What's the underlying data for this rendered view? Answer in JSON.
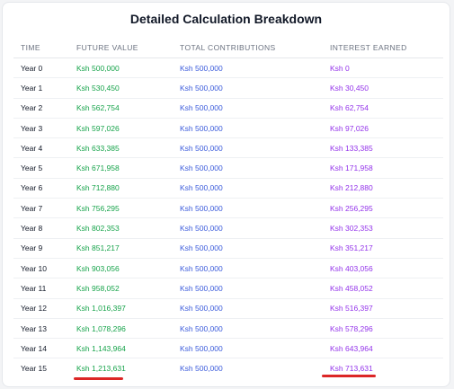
{
  "title": "Detailed Calculation Breakdown",
  "headers": {
    "time": "TIME",
    "future_value": "FUTURE VALUE",
    "total_contributions": "TOTAL CONTRIBUTIONS",
    "interest_earned": "INTEREST EARNED"
  },
  "colors": {
    "future_value": "#16a34a",
    "total_contributions": "#3b5bdb",
    "interest_earned": "#9333ea",
    "annotation": "#dc2626"
  },
  "rows": [
    {
      "time": "Year 0",
      "future_value": "Ksh 500,000",
      "total_contributions": "Ksh 500,000",
      "interest_earned": "Ksh 0"
    },
    {
      "time": "Year 1",
      "future_value": "Ksh 530,450",
      "total_contributions": "Ksh 500,000",
      "interest_earned": "Ksh 30,450"
    },
    {
      "time": "Year 2",
      "future_value": "Ksh 562,754",
      "total_contributions": "Ksh 500,000",
      "interest_earned": "Ksh 62,754"
    },
    {
      "time": "Year 3",
      "future_value": "Ksh 597,026",
      "total_contributions": "Ksh 500,000",
      "interest_earned": "Ksh 97,026"
    },
    {
      "time": "Year 4",
      "future_value": "Ksh 633,385",
      "total_contributions": "Ksh 500,000",
      "interest_earned": "Ksh 133,385"
    },
    {
      "time": "Year 5",
      "future_value": "Ksh 671,958",
      "total_contributions": "Ksh 500,000",
      "interest_earned": "Ksh 171,958"
    },
    {
      "time": "Year 6",
      "future_value": "Ksh 712,880",
      "total_contributions": "Ksh 500,000",
      "interest_earned": "Ksh 212,880"
    },
    {
      "time": "Year 7",
      "future_value": "Ksh 756,295",
      "total_contributions": "Ksh 500,000",
      "interest_earned": "Ksh 256,295"
    },
    {
      "time": "Year 8",
      "future_value": "Ksh 802,353",
      "total_contributions": "Ksh 500,000",
      "interest_earned": "Ksh 302,353"
    },
    {
      "time": "Year 9",
      "future_value": "Ksh 851,217",
      "total_contributions": "Ksh 500,000",
      "interest_earned": "Ksh 351,217"
    },
    {
      "time": "Year 10",
      "future_value": "Ksh 903,056",
      "total_contributions": "Ksh 500,000",
      "interest_earned": "Ksh 403,056"
    },
    {
      "time": "Year 11",
      "future_value": "Ksh 958,052",
      "total_contributions": "Ksh 500,000",
      "interest_earned": "Ksh 458,052"
    },
    {
      "time": "Year 12",
      "future_value": "Ksh 1,016,397",
      "total_contributions": "Ksh 500,000",
      "interest_earned": "Ksh 516,397"
    },
    {
      "time": "Year 13",
      "future_value": "Ksh 1,078,296",
      "total_contributions": "Ksh 500,000",
      "interest_earned": "Ksh 578,296"
    },
    {
      "time": "Year 14",
      "future_value": "Ksh 1,143,964",
      "total_contributions": "Ksh 500,000",
      "interest_earned": "Ksh 643,964"
    },
    {
      "time": "Year 15",
      "future_value": "Ksh 1,213,631",
      "total_contributions": "Ksh 500,000",
      "interest_earned": "Ksh 713,631"
    }
  ]
}
